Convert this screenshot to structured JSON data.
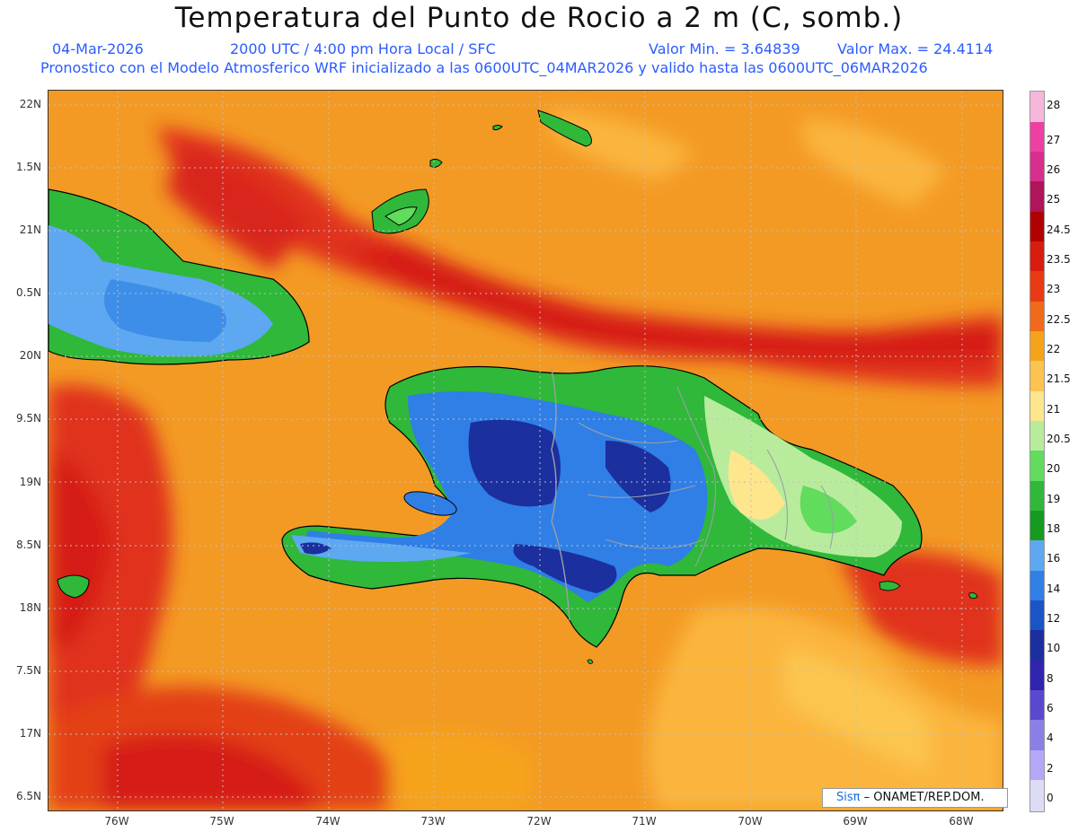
{
  "title": "Temperatura del Punto de Rocio a 2 m (C, somb.)",
  "subtitle": {
    "date": "04-Mar-2026",
    "time": "2000 UTC / 4:00 pm Hora Local / SFC",
    "min": "Valor Min. = 3.64839",
    "max": "Valor Max. = 24.4114",
    "model": "Pronostico con el Modelo Atmosferico WRF inicializado a las 0600UTC_04MAR2026 y valido hasta las  0600UTC_06MAR2026"
  },
  "axes": {
    "lat_labels": [
      "22N",
      "1.5N",
      "21N",
      "0.5N",
      "20N",
      "9.5N",
      "19N",
      "8.5N",
      "18N",
      "7.5N",
      "17N",
      "6.5N"
    ],
    "lon_labels": [
      "76W",
      "75W",
      "74W",
      "73W",
      "72W",
      "71W",
      "70W",
      "69W",
      "68W"
    ]
  },
  "legend": {
    "labels": [
      "28",
      "27",
      "26",
      "25",
      "24.5",
      "23.5",
      "23",
      "22.5",
      "22",
      "21.5",
      "21",
      "20.5",
      "20",
      "19",
      "18",
      "16",
      "14",
      "12",
      "10",
      "8",
      "6",
      "4",
      "2",
      "0"
    ],
    "colors": [
      "#f6b8da",
      "#ee3fa3",
      "#d82e8e",
      "#b0145a",
      "#b00000",
      "#d81d10",
      "#ea3a14",
      "#f06a1a",
      "#f6a31c",
      "#fbc34f",
      "#fde68c",
      "#b8ec9c",
      "#61dc5c",
      "#2fb83a",
      "#179a20",
      "#5da8f0",
      "#2f7fe6",
      "#1a55c8",
      "#1c2f9e",
      "#3024b0",
      "#5b48d0",
      "#8a7fe6",
      "#b4a8f6",
      "#dcdcf6"
    ]
  },
  "credit": {
    "sis": "Sisπ",
    "text": " – ONAMET/REP.DOM."
  },
  "colors": {
    "ocean": "#f39a24",
    "ocean_hot": "#e8521c",
    "ocean_red": "#d9261a",
    "ocean_warm": "#fbb53d",
    "land_green": "#2fb83a",
    "land_blue": "#2f7fe6",
    "land_darkblue": "#1c2f9e",
    "title_blue": "#2b5cff"
  }
}
